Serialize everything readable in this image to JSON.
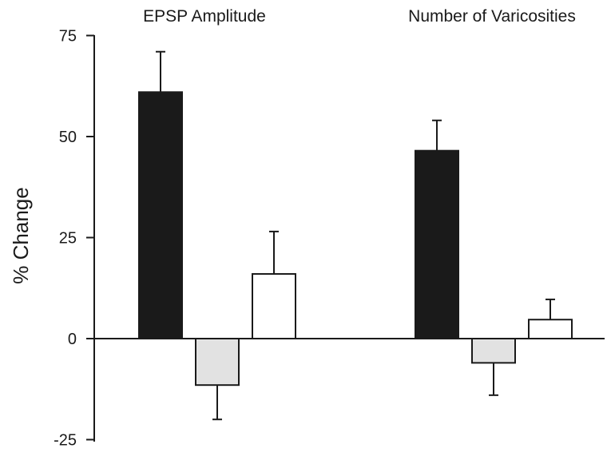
{
  "chart_data": [
    {
      "type": "bar",
      "title": "EPSP Amplitude",
      "ylabel": "% Change",
      "ylim": [
        -25,
        75
      ],
      "yticks": [
        75,
        50,
        25,
        0,
        -25
      ],
      "bars": [
        {
          "value": 61,
          "error": 10,
          "color": "#1a1a1a"
        },
        {
          "value": -11.5,
          "error": 8.5,
          "color": "#e2e2e2"
        },
        {
          "value": 16,
          "error": 10.5,
          "color": "#ffffff"
        }
      ]
    },
    {
      "type": "bar",
      "title": "Number of Varicosities",
      "ylim": [
        -25,
        75
      ],
      "bars": [
        {
          "value": 46.5,
          "error": 7.5,
          "color": "#1a1a1a"
        },
        {
          "value": -6,
          "error": 8,
          "color": "#e2e2e2"
        },
        {
          "value": 4.7,
          "error": 5,
          "color": "#ffffff"
        }
      ]
    }
  ]
}
